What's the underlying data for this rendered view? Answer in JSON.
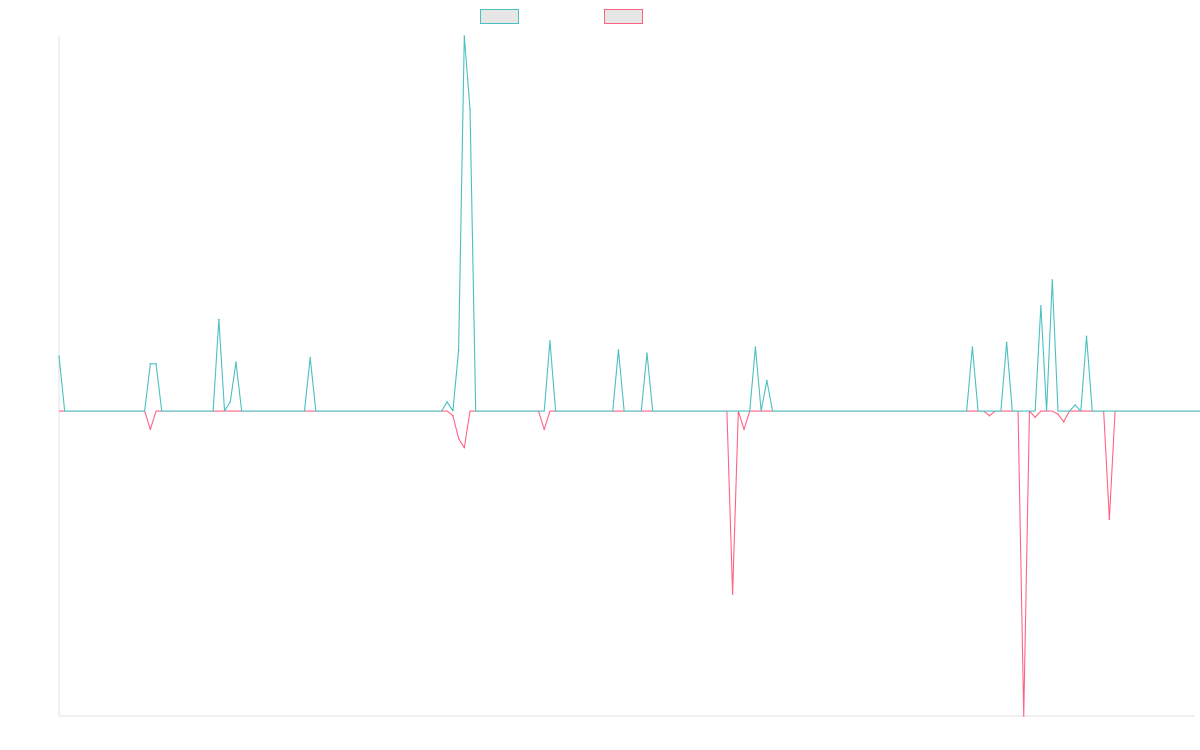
{
  "chart_data": {
    "type": "line",
    "title": "",
    "xlabel": "",
    "ylabel": "",
    "grid": false,
    "legend_position": "top-center",
    "x_count": 200,
    "ylim": [
      -1.0,
      1.23
    ],
    "series": [
      {
        "name": "",
        "color": "#4bc0c0",
        "values": [
          0.18,
          0,
          0,
          0,
          0,
          0,
          0,
          0,
          0,
          0,
          0,
          0,
          0,
          0,
          0,
          0,
          0.155,
          0.155,
          0,
          0,
          0,
          0,
          0,
          0,
          0,
          0,
          0,
          0,
          0.3,
          0,
          0.03,
          0.16,
          0,
          0,
          0,
          0,
          0,
          0,
          0,
          0,
          0,
          0,
          0,
          0,
          0.175,
          0,
          0,
          0,
          0,
          0,
          0,
          0,
          0,
          0,
          0,
          0,
          0,
          0,
          0,
          0,
          0,
          0,
          0,
          0,
          0,
          0,
          0,
          0,
          0.03,
          0,
          0.2,
          1.23,
          0.99,
          0,
          0,
          0,
          0,
          0,
          0,
          0,
          0,
          0,
          0,
          0,
          0,
          0,
          0.23,
          0,
          0,
          0,
          0,
          0,
          0,
          0,
          0,
          0,
          0,
          0,
          0.2,
          0,
          0,
          0,
          0,
          0.19,
          0,
          0,
          0,
          0,
          0,
          0,
          0,
          0,
          0,
          0,
          0,
          0,
          0,
          0,
          0,
          0,
          0,
          0,
          0.21,
          0,
          0.1,
          0,
          0,
          0,
          0,
          0,
          0,
          0,
          0,
          0,
          0,
          0,
          0,
          0,
          0,
          0,
          0,
          0,
          0,
          0,
          0,
          0,
          0,
          0,
          0,
          0,
          0,
          0,
          0,
          0,
          0,
          0,
          0,
          0,
          0,
          0,
          0.21,
          0,
          0,
          0,
          0,
          0,
          0.225,
          0,
          0,
          0,
          0,
          0,
          0.345,
          0,
          0.43,
          0,
          0,
          0,
          0.02,
          0,
          0.245,
          0,
          0,
          0,
          0,
          0,
          0,
          0,
          0,
          0,
          0,
          0,
          0,
          0,
          0,
          0,
          0,
          0,
          0,
          0,
          0,
          0,
          0,
          0
        ]
      },
      {
        "name": "",
        "color": "#ff6384",
        "values": [
          0,
          0,
          0,
          0,
          0,
          0,
          0,
          0,
          0,
          0,
          0,
          0,
          0,
          0,
          0,
          0,
          -0.06,
          0,
          0,
          0,
          0,
          0,
          0,
          0,
          0,
          0,
          0,
          0,
          0,
          0,
          0,
          0,
          0,
          0,
          0,
          0,
          0,
          0,
          0,
          0,
          0,
          0,
          0,
          0,
          0,
          0,
          0,
          0,
          0,
          0,
          0,
          0,
          0,
          0,
          0,
          0,
          0,
          0,
          0,
          0,
          0,
          0,
          0,
          0,
          0,
          0,
          0,
          0,
          0,
          -0.015,
          -0.09,
          -0.12,
          0,
          0,
          0,
          0,
          0,
          0,
          0,
          0,
          0,
          0,
          0,
          0,
          0,
          -0.06,
          0,
          0,
          0,
          0,
          0,
          0,
          0,
          0,
          0,
          0,
          0,
          0,
          0,
          0,
          0,
          0,
          0,
          0,
          0,
          0,
          0,
          0,
          0,
          0,
          0,
          0,
          0,
          0,
          0,
          0,
          0,
          0,
          -0.6,
          0,
          -0.06,
          0,
          0,
          0,
          0,
          0,
          0,
          0,
          0,
          0,
          0,
          0,
          0,
          0,
          0,
          0,
          0,
          0,
          0,
          0,
          0,
          0,
          0,
          0,
          0,
          0,
          0,
          0,
          0,
          0,
          0,
          0,
          0,
          0,
          0,
          0,
          0,
          0,
          0,
          0,
          0,
          0,
          0,
          -0.015,
          0,
          0,
          0,
          0,
          0,
          -1.0,
          0,
          -0.02,
          0,
          0,
          0,
          -0.01,
          -0.035,
          0,
          0,
          0,
          0,
          0,
          0,
          0,
          -0.355,
          0,
          0,
          0,
          0,
          0,
          0,
          0,
          0,
          0,
          0,
          0,
          0,
          0,
          0,
          0,
          0,
          0,
          0,
          0,
          0,
          0
        ]
      }
    ]
  }
}
